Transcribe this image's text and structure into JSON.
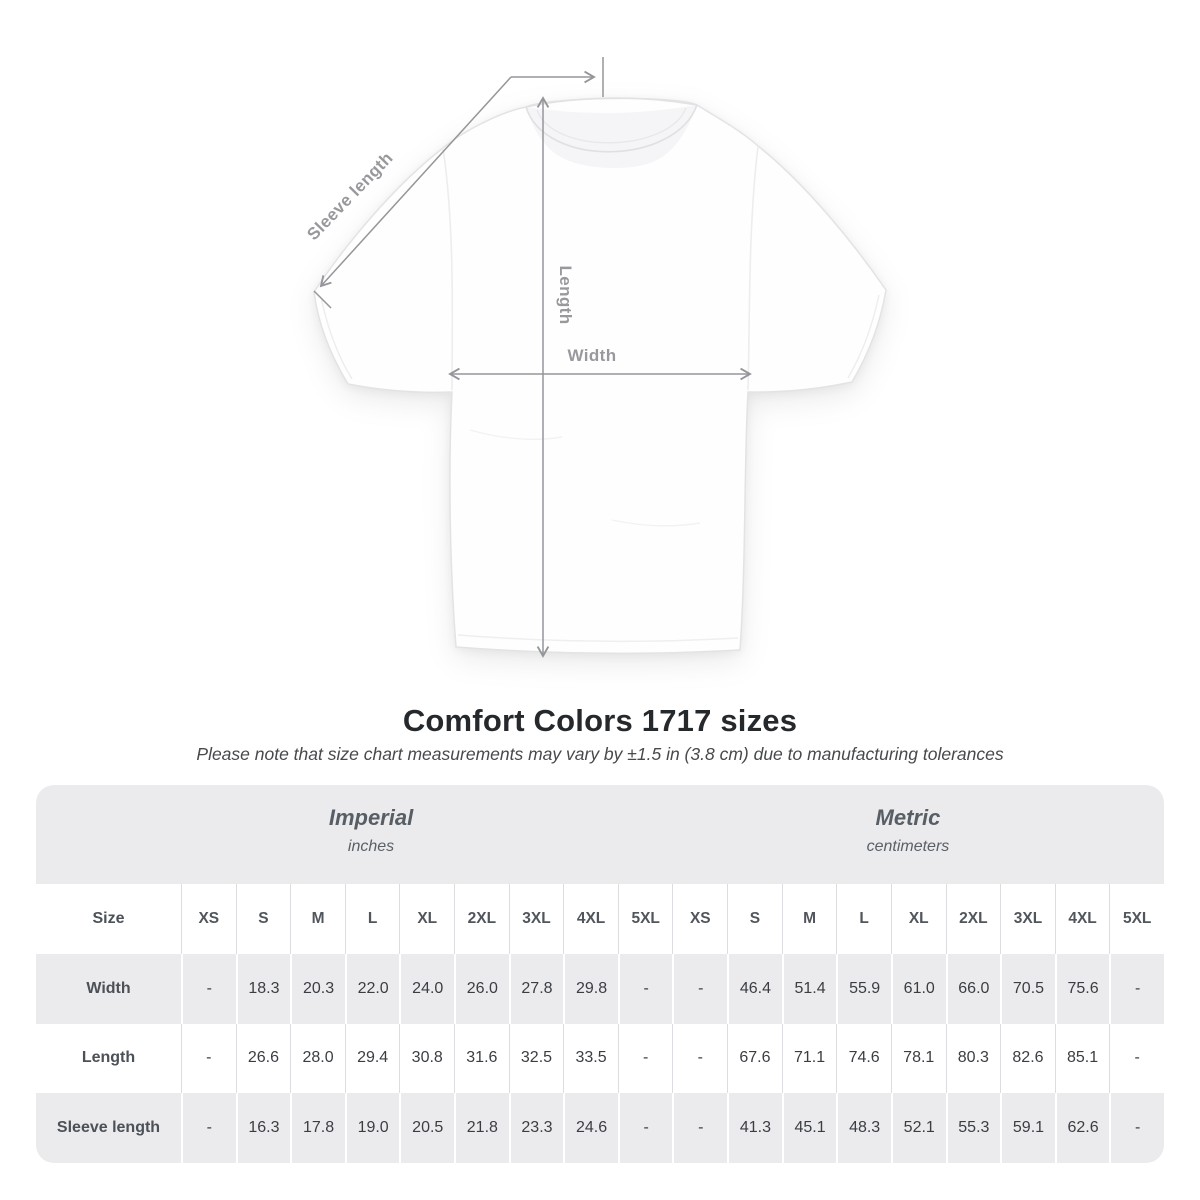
{
  "title": "Comfort Colors 1717 sizes",
  "subtitle": "Please note that size chart measurements may vary by ±1.5 in (3.8 cm) due to manufacturing tolerances",
  "figure": {
    "labels": {
      "sleeve": "Sleeve length",
      "length": "Length",
      "width": "Width"
    }
  },
  "chart_data": {
    "type": "table",
    "units_groups": [
      {
        "label": "Imperial",
        "sublabel": "inches"
      },
      {
        "label": "Metric",
        "sublabel": "centimeters"
      }
    ],
    "corner_header": "Size",
    "sizes": [
      "XS",
      "S",
      "M",
      "L",
      "XL",
      "2XL",
      "3XL",
      "4XL",
      "5XL"
    ],
    "rows": [
      {
        "label": "Width",
        "imperial": [
          "-",
          "18.3",
          "20.3",
          "22.0",
          "24.0",
          "26.0",
          "27.8",
          "29.8",
          "-"
        ],
        "metric": [
          "-",
          "46.4",
          "51.4",
          "55.9",
          "61.0",
          "66.0",
          "70.5",
          "75.6",
          "-"
        ]
      },
      {
        "label": "Length",
        "imperial": [
          "-",
          "26.6",
          "28.0",
          "29.4",
          "30.8",
          "31.6",
          "32.5",
          "33.5",
          "-"
        ],
        "metric": [
          "-",
          "67.6",
          "71.1",
          "74.6",
          "78.1",
          "80.3",
          "82.6",
          "85.1",
          "-"
        ]
      },
      {
        "label": "Sleeve length",
        "imperial": [
          "-",
          "16.3",
          "17.8",
          "19.0",
          "20.5",
          "21.8",
          "23.3",
          "24.6",
          "-"
        ],
        "metric": [
          "-",
          "41.3",
          "45.1",
          "48.3",
          "52.1",
          "55.3",
          "59.1",
          "62.6",
          "-"
        ]
      }
    ]
  },
  "colors": {
    "band_gray": "#ebebed",
    "annotation_gray": "#94969a",
    "title_color": "#26292c"
  }
}
